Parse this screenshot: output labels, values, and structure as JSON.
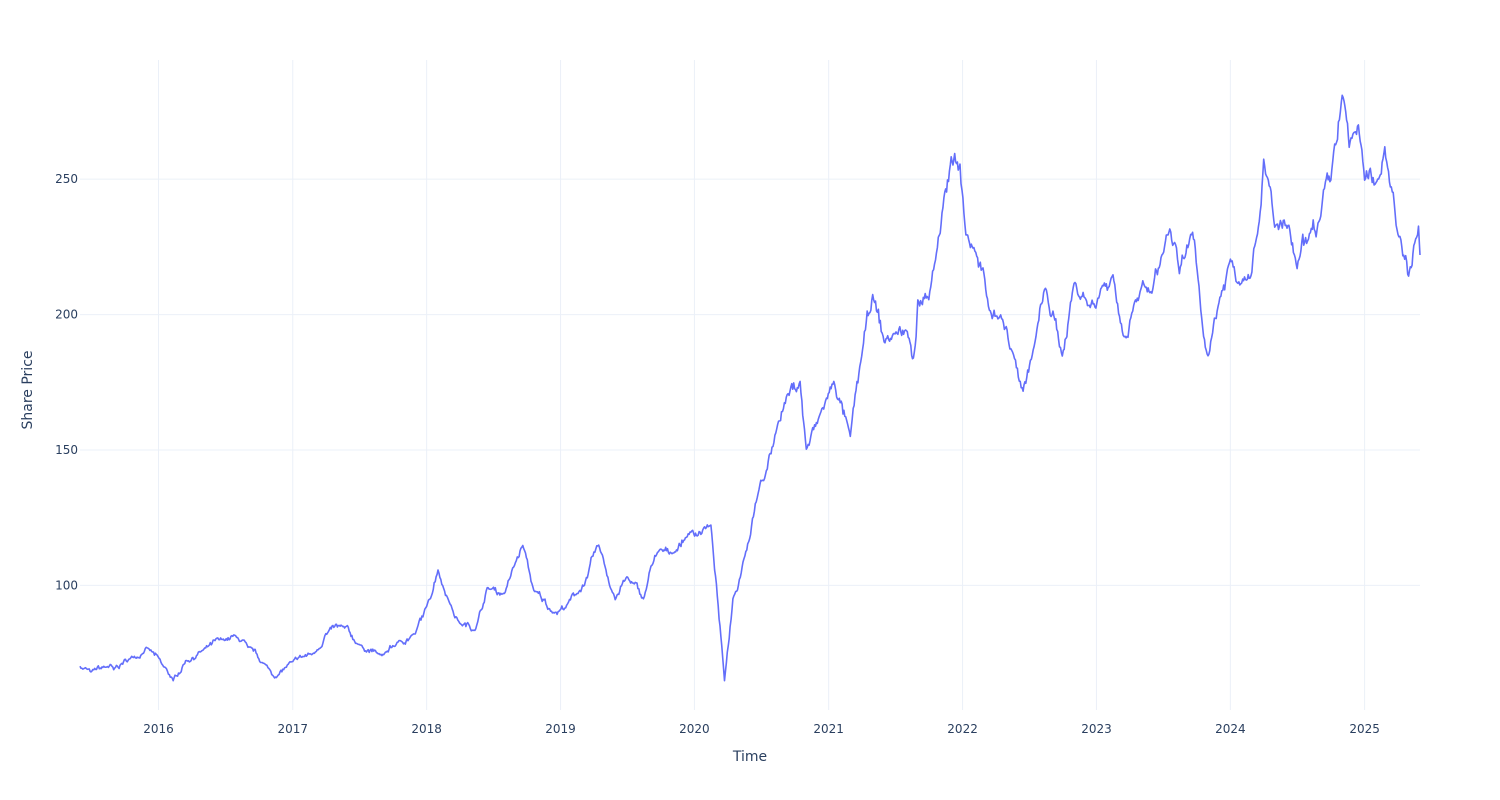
{
  "chart_data": {
    "type": "line",
    "title": "",
    "xlabel": "Time",
    "ylabel": "Share Price",
    "x_tick_labels": [
      "2016",
      "2017",
      "2018",
      "2019",
      "2020",
      "2021",
      "2022",
      "2023",
      "2024",
      "2025"
    ],
    "y_tick_values": [
      100,
      150,
      200,
      250
    ],
    "xlim": [
      "2015-06-01",
      "2025-06-01"
    ],
    "ylim": [
      54,
      294
    ],
    "grid": true,
    "line_color": "#636efa",
    "series": [
      {
        "values_note": "daily closing share price (approximate keypoints)",
        "points": [
          [
            "2015-06-01",
            70
          ],
          [
            "2015-07-01",
            68
          ],
          [
            "2015-08-15",
            70
          ],
          [
            "2015-09-01",
            69
          ],
          [
            "2015-10-15",
            73
          ],
          [
            "2015-12-01",
            77
          ],
          [
            "2016-01-15",
            70
          ],
          [
            "2016-02-10",
            65
          ],
          [
            "2016-03-15",
            72
          ],
          [
            "2016-05-01",
            76
          ],
          [
            "2016-07-01",
            80
          ],
          [
            "2016-08-01",
            81
          ],
          [
            "2016-09-01",
            77
          ],
          [
            "2016-10-15",
            71
          ],
          [
            "2016-11-15",
            66
          ],
          [
            "2017-01-01",
            72
          ],
          [
            "2017-03-01",
            75
          ],
          [
            "2017-04-01",
            82
          ],
          [
            "2017-05-15",
            85
          ],
          [
            "2017-07-01",
            78
          ],
          [
            "2017-09-01",
            74
          ],
          [
            "2017-10-15",
            79
          ],
          [
            "2017-12-01",
            82
          ],
          [
            "2018-01-01",
            92
          ],
          [
            "2018-02-01",
            106
          ],
          [
            "2018-03-01",
            95
          ],
          [
            "2018-04-01",
            86
          ],
          [
            "2018-05-15",
            84
          ],
          [
            "2018-06-15",
            99
          ],
          [
            "2018-08-01",
            97
          ],
          [
            "2018-09-20",
            115
          ],
          [
            "2018-10-20",
            98
          ],
          [
            "2018-12-15",
            90
          ],
          [
            "2019-01-15",
            92
          ],
          [
            "2019-02-15",
            97
          ],
          [
            "2019-03-15",
            103
          ],
          [
            "2019-04-15",
            115
          ],
          [
            "2019-05-30",
            95
          ],
          [
            "2019-07-01",
            103
          ],
          [
            "2019-08-15",
            95
          ],
          [
            "2019-09-15",
            111
          ],
          [
            "2019-11-01",
            112
          ],
          [
            "2019-12-15",
            119
          ],
          [
            "2020-02-15",
            122
          ],
          [
            "2020-03-23",
            65
          ],
          [
            "2020-04-15",
            95
          ],
          [
            "2020-05-15",
            110
          ],
          [
            "2020-06-15",
            130
          ],
          [
            "2020-07-15",
            142
          ],
          [
            "2020-08-15",
            160
          ],
          [
            "2020-09-10",
            170
          ],
          [
            "2020-10-15",
            175
          ],
          [
            "2020-11-01",
            150
          ],
          [
            "2020-12-01",
            160
          ],
          [
            "2021-01-15",
            175
          ],
          [
            "2021-03-01",
            155
          ],
          [
            "2021-04-01",
            185
          ],
          [
            "2021-05-01",
            207
          ],
          [
            "2021-06-01",
            190
          ],
          [
            "2021-07-01",
            193
          ],
          [
            "2021-08-01",
            194
          ],
          [
            "2021-08-20",
            184
          ],
          [
            "2021-09-01",
            205
          ],
          [
            "2021-10-01",
            205
          ],
          [
            "2021-11-01",
            230
          ],
          [
            "2021-12-01",
            258
          ],
          [
            "2021-12-25",
            255
          ],
          [
            "2022-01-10",
            230
          ],
          [
            "2022-02-01",
            225
          ],
          [
            "2022-03-15",
            202
          ],
          [
            "2022-04-15",
            200
          ],
          [
            "2022-05-20",
            185
          ],
          [
            "2022-06-15",
            172
          ],
          [
            "2022-07-15",
            188
          ],
          [
            "2022-08-15",
            210
          ],
          [
            "2022-09-30",
            185
          ],
          [
            "2022-11-01",
            212
          ],
          [
            "2022-12-15",
            203
          ],
          [
            "2023-01-15",
            210
          ],
          [
            "2023-02-15",
            215
          ],
          [
            "2023-03-15",
            192
          ],
          [
            "2023-04-15",
            205
          ],
          [
            "2023-06-01",
            208
          ],
          [
            "2023-07-01",
            222
          ],
          [
            "2023-07-20",
            232
          ],
          [
            "2023-08-15",
            215
          ],
          [
            "2023-09-20",
            230
          ],
          [
            "2023-10-20",
            192
          ],
          [
            "2023-11-01",
            185
          ],
          [
            "2023-12-01",
            205
          ],
          [
            "2024-01-01",
            220
          ],
          [
            "2024-02-01",
            212
          ],
          [
            "2024-03-15",
            230
          ],
          [
            "2024-04-01",
            258
          ],
          [
            "2024-05-01",
            232
          ],
          [
            "2024-06-01",
            233
          ],
          [
            "2024-07-01",
            217
          ],
          [
            "2024-08-01",
            228
          ],
          [
            "2024-09-01",
            235
          ],
          [
            "2024-10-01",
            250
          ],
          [
            "2024-11-01",
            281
          ],
          [
            "2024-11-20",
            262
          ],
          [
            "2024-12-15",
            270
          ],
          [
            "2025-01-01",
            250
          ],
          [
            "2025-02-01",
            248
          ],
          [
            "2025-02-25",
            262
          ],
          [
            "2025-03-20",
            245
          ],
          [
            "2025-04-15",
            222
          ],
          [
            "2025-05-01",
            214
          ],
          [
            "2025-05-15",
            225
          ],
          [
            "2025-05-28",
            232
          ],
          [
            "2025-06-01",
            222
          ]
        ]
      }
    ]
  }
}
